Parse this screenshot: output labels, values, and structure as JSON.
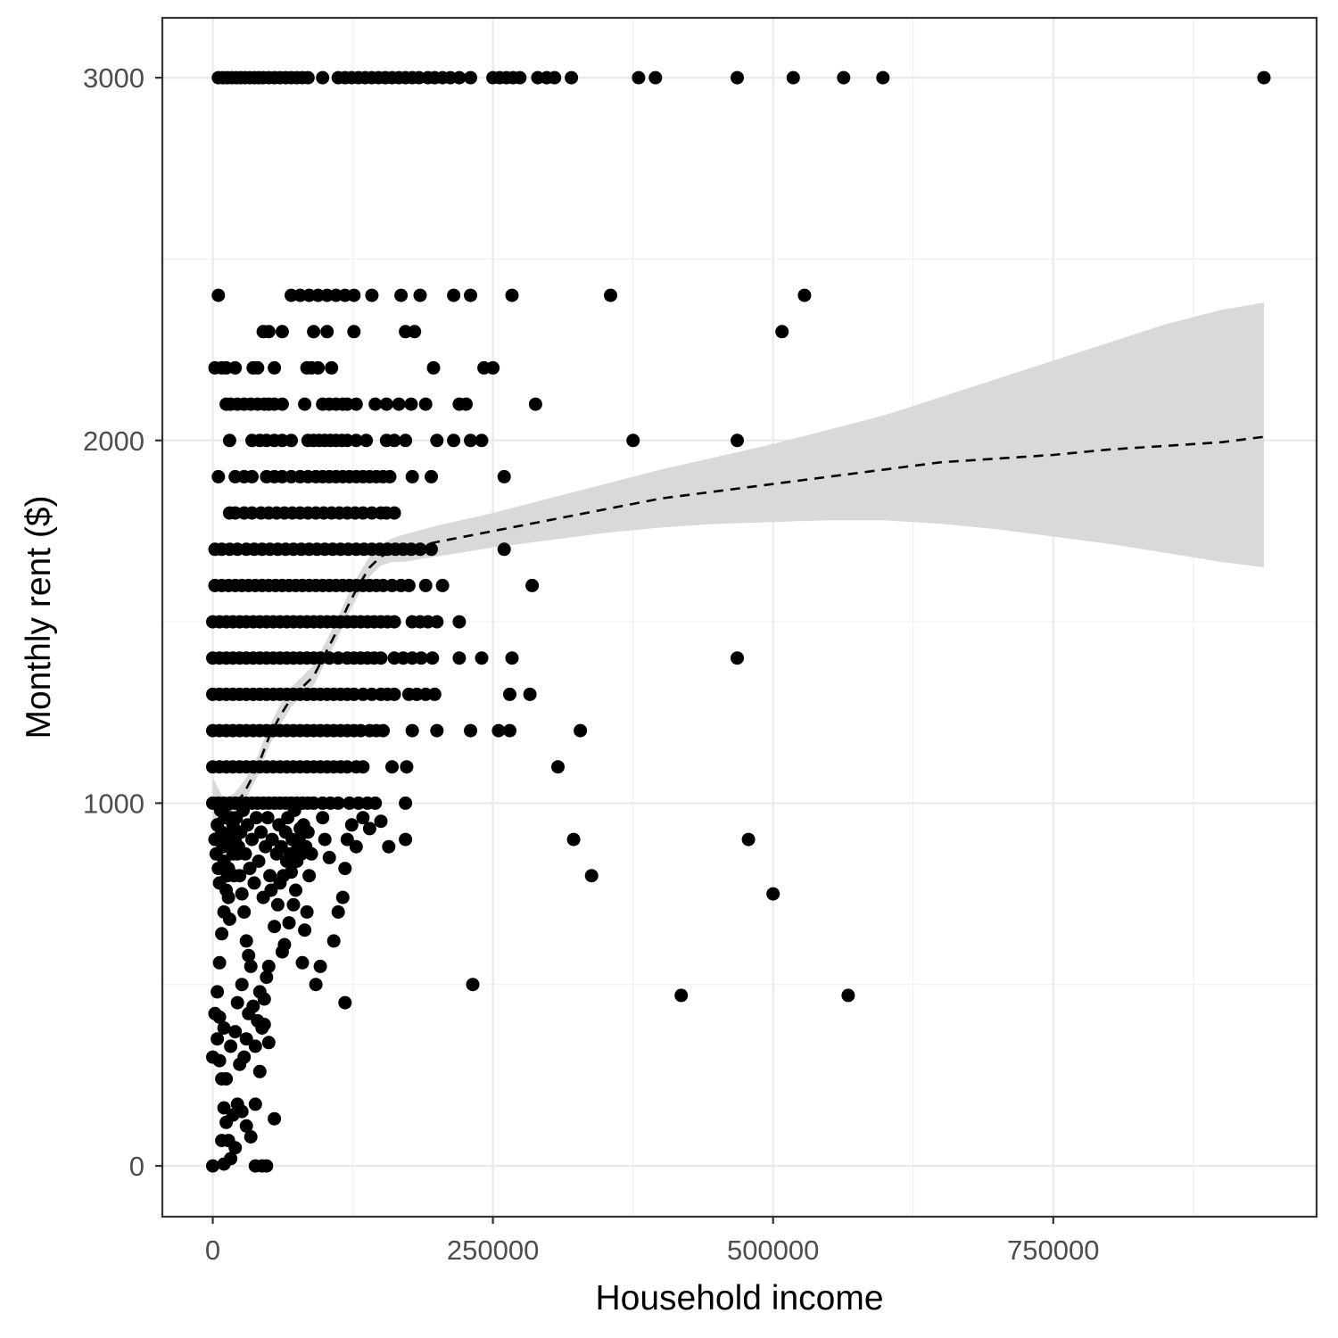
{
  "chart_data": {
    "type": "scatter",
    "title": "",
    "xlabel": "Household income",
    "ylabel": "Monthly rent ($)",
    "xlim": [
      -45000,
      985000
    ],
    "ylim": [
      -140,
      3165
    ],
    "x_ticks": [
      0,
      250000,
      500000,
      750000
    ],
    "x_tick_labels": [
      "0",
      "250000",
      "500000",
      "750000"
    ],
    "y_ticks": [
      0,
      1000,
      2000,
      3000
    ],
    "y_tick_labels": [
      "0",
      "1000",
      "2000",
      "3000"
    ],
    "grid": true,
    "point_color": "#000000",
    "rows": [
      {
        "rent": 3000,
        "incomes": [
          5000,
          9000,
          13000,
          17000,
          21000,
          25000,
          29000,
          33000,
          37000,
          41000,
          45000,
          50000,
          55000,
          60000,
          65000,
          70000,
          75000,
          80000,
          85000,
          98000,
          112000,
          118000,
          124000,
          130000,
          136000,
          142000,
          148000,
          154000,
          160000,
          166000,
          172000,
          178000,
          184000,
          192000,
          198000,
          205000,
          212000,
          220000,
          230000,
          250000,
          256000,
          262000,
          268000,
          274000,
          290000,
          298000,
          305000,
          320000,
          380000,
          395000,
          468000,
          518000,
          563000,
          598000,
          938000
        ]
      },
      {
        "rent": 2400,
        "incomes": [
          5000,
          70000,
          78000,
          86000,
          94000,
          102000,
          110000,
          118000,
          126000,
          142000,
          168000,
          185000,
          215000,
          230000,
          267000,
          355000,
          528000
        ]
      },
      {
        "rent": 2300,
        "incomes": [
          45000,
          50000,
          62000,
          90000,
          102000,
          126000,
          172000,
          180000,
          508000
        ]
      },
      {
        "rent": 2200,
        "incomes": [
          2000,
          8000,
          12000,
          20000,
          36000,
          40000,
          55000,
          84000,
          88000,
          94000,
          106000,
          197000,
          242000,
          250000
        ]
      },
      {
        "rent": 2100,
        "incomes": [
          12000,
          16000,
          22000,
          28000,
          34000,
          40000,
          46000,
          50000,
          55000,
          62000,
          82000,
          98000,
          104000,
          110000,
          116000,
          120000,
          128000,
          145000,
          155000,
          166000,
          177000,
          190000,
          220000,
          226000,
          288000
        ]
      },
      {
        "rent": 2000,
        "incomes": [
          15000,
          35000,
          42000,
          48000,
          55000,
          62000,
          70000,
          85000,
          90000,
          95000,
          100000,
          105000,
          110000,
          115000,
          120000,
          128000,
          137000,
          155000,
          162000,
          172000,
          200000,
          215000,
          230000,
          240000,
          375000,
          468000
        ]
      },
      {
        "rent": 1900,
        "incomes": [
          5000,
          20000,
          28000,
          35000,
          48000,
          55000,
          62000,
          70000,
          78000,
          85000,
          92000,
          98000,
          104000,
          110000,
          116000,
          122000,
          128000,
          134000,
          140000,
          146000,
          152000,
          158000,
          178000,
          195000,
          260000
        ]
      },
      {
        "rent": 1800,
        "incomes": [
          15000,
          20000,
          28000,
          35000,
          43000,
          50000,
          57000,
          64000,
          71000,
          78000,
          85000,
          92000,
          99000,
          106000,
          113000,
          120000,
          127000,
          134000,
          142000,
          150000,
          155000,
          162000
        ]
      },
      {
        "rent": 1700,
        "incomes": [
          2000,
          8000,
          15000,
          22000,
          30000,
          37000,
          44000,
          51000,
          58000,
          65000,
          72000,
          79000,
          86000,
          93000,
          100000,
          107000,
          114000,
          121000,
          128000,
          135000,
          142000,
          149000,
          156000,
          163000,
          170000,
          177000,
          185000,
          195000,
          260000
        ]
      },
      {
        "rent": 1600,
        "incomes": [
          2000,
          8000,
          14000,
          20000,
          26000,
          32000,
          38000,
          44000,
          50000,
          56000,
          62000,
          68000,
          74000,
          80000,
          86000,
          92000,
          98000,
          104000,
          110000,
          116000,
          122000,
          128000,
          134000,
          140000,
          146000,
          152000,
          160000,
          168000,
          175000,
          190000,
          205000,
          285000
        ]
      },
      {
        "rent": 1500,
        "incomes": [
          0,
          6000,
          12000,
          18000,
          24000,
          30000,
          36000,
          42000,
          48000,
          54000,
          60000,
          66000,
          72000,
          78000,
          84000,
          90000,
          96000,
          102000,
          108000,
          114000,
          120000,
          126000,
          132000,
          138000,
          144000,
          150000,
          156000,
          162000,
          178000,
          185000,
          192000,
          200000,
          220000
        ]
      },
      {
        "rent": 1400,
        "incomes": [
          0,
          6000,
          12000,
          18000,
          24000,
          30000,
          36000,
          42000,
          48000,
          54000,
          60000,
          66000,
          72000,
          78000,
          84000,
          90000,
          96000,
          104000,
          112000,
          120000,
          126000,
          132000,
          138000,
          144000,
          150000,
          162000,
          170000,
          178000,
          186000,
          196000,
          220000,
          240000,
          267000,
          468000
        ]
      },
      {
        "rent": 1300,
        "incomes": [
          0,
          6000,
          12000,
          18000,
          24000,
          30000,
          36000,
          42000,
          48000,
          54000,
          60000,
          66000,
          72000,
          78000,
          84000,
          90000,
          96000,
          102000,
          108000,
          114000,
          120000,
          126000,
          134000,
          142000,
          150000,
          156000,
          162000,
          175000,
          182000,
          190000,
          198000,
          265000,
          283000
        ]
      },
      {
        "rent": 1200,
        "incomes": [
          0,
          6000,
          12000,
          18000,
          24000,
          30000,
          36000,
          42000,
          48000,
          54000,
          60000,
          66000,
          72000,
          78000,
          84000,
          90000,
          96000,
          102000,
          108000,
          114000,
          120000,
          126000,
          132000,
          140000,
          146000,
          152000,
          178000,
          200000,
          230000,
          255000,
          265000,
          328000
        ]
      },
      {
        "rent": 1100,
        "incomes": [
          0,
          6000,
          12000,
          18000,
          24000,
          30000,
          36000,
          42000,
          48000,
          54000,
          60000,
          66000,
          72000,
          78000,
          84000,
          90000,
          96000,
          102000,
          108000,
          114000,
          120000,
          128000,
          134000,
          160000,
          173000,
          308000
        ]
      },
      {
        "rent": 1000,
        "incomes": [
          0,
          5000,
          10000,
          15000,
          20000,
          25000,
          30000,
          35000,
          40000,
          45000,
          50000,
          55000,
          60000,
          65000,
          70000,
          75000,
          80000,
          85000,
          90000,
          98000,
          105000,
          112000,
          122000,
          130000,
          138000,
          145000,
          172000
        ]
      }
    ],
    "scatter_points": [
      [
        322000,
        900
      ],
      [
        338000,
        800
      ],
      [
        478000,
        900
      ],
      [
        500000,
        750
      ],
      [
        232000,
        500
      ],
      [
        418000,
        470
      ],
      [
        567000,
        470
      ],
      [
        172000,
        900
      ],
      [
        157000,
        880
      ],
      [
        150000,
        950
      ],
      [
        140000,
        930
      ],
      [
        134000,
        960
      ],
      [
        128000,
        880
      ],
      [
        124000,
        940
      ],
      [
        120000,
        900
      ],
      [
        118000,
        820
      ],
      [
        116000,
        740
      ],
      [
        112000,
        700
      ],
      [
        108000,
        620
      ],
      [
        104000,
        850
      ],
      [
        100000,
        900
      ],
      [
        98000,
        960
      ],
      [
        96000,
        550
      ],
      [
        92000,
        500
      ],
      [
        118000,
        450
      ],
      [
        88000,
        860
      ],
      [
        86000,
        800
      ],
      [
        84000,
        700
      ],
      [
        82000,
        650
      ],
      [
        80000,
        560
      ],
      [
        78000,
        930
      ],
      [
        76000,
        880
      ],
      [
        74000,
        760
      ],
      [
        72000,
        720
      ],
      [
        70000,
        810
      ],
      [
        68000,
        670
      ],
      [
        66000,
        840
      ],
      [
        64000,
        610
      ],
      [
        62000,
        590
      ],
      [
        60000,
        780
      ],
      [
        58000,
        720
      ],
      [
        55000,
        660
      ],
      [
        52000,
        760
      ],
      [
        50000,
        550
      ],
      [
        48000,
        520
      ],
      [
        46000,
        460
      ],
      [
        44000,
        380
      ],
      [
        42000,
        480
      ],
      [
        40000,
        400
      ],
      [
        38000,
        330
      ],
      [
        36000,
        440
      ],
      [
        34000,
        550
      ],
      [
        32000,
        580
      ],
      [
        30000,
        620
      ],
      [
        28000,
        700
      ],
      [
        26000,
        750
      ],
      [
        24000,
        800
      ],
      [
        22000,
        860
      ],
      [
        20000,
        900
      ],
      [
        18000,
        940
      ],
      [
        16000,
        880
      ],
      [
        14000,
        820
      ],
      [
        12000,
        760
      ],
      [
        10000,
        700
      ],
      [
        8000,
        640
      ],
      [
        6000,
        560
      ],
      [
        4000,
        480
      ],
      [
        2000,
        420
      ],
      [
        0,
        300
      ],
      [
        2000,
        900
      ],
      [
        3000,
        860
      ],
      [
        4000,
        940
      ],
      [
        5000,
        820
      ],
      [
        6000,
        780
      ],
      [
        7000,
        980
      ],
      [
        8000,
        920
      ],
      [
        9000,
        880
      ],
      [
        10000,
        840
      ],
      [
        11000,
        960
      ],
      [
        12000,
        900
      ],
      [
        13000,
        800
      ],
      [
        14000,
        740
      ],
      [
        15000,
        680
      ],
      [
        16000,
        960
      ],
      [
        17000,
        920
      ],
      [
        18000,
        860
      ],
      [
        19000,
        800
      ],
      [
        21000,
        960
      ],
      [
        23000,
        880
      ],
      [
        25000,
        920
      ],
      [
        27000,
        980
      ],
      [
        29000,
        860
      ],
      [
        31000,
        940
      ],
      [
        33000,
        820
      ],
      [
        35000,
        900
      ],
      [
        37000,
        780
      ],
      [
        39000,
        960
      ],
      [
        41000,
        840
      ],
      [
        43000,
        920
      ],
      [
        45000,
        740
      ],
      [
        47000,
        880
      ],
      [
        49000,
        960
      ],
      [
        51000,
        800
      ],
      [
        53000,
        900
      ],
      [
        57000,
        860
      ],
      [
        59000,
        940
      ],
      [
        61000,
        880
      ],
      [
        63000,
        800
      ],
      [
        65000,
        920
      ],
      [
        67000,
        960
      ],
      [
        69000,
        860
      ],
      [
        71000,
        900
      ],
      [
        73000,
        980
      ],
      [
        75000,
        840
      ],
      [
        77000,
        900
      ],
      [
        79000,
        860
      ],
      [
        81000,
        940
      ],
      [
        83000,
        880
      ],
      [
        85000,
        920
      ],
      [
        4000,
        350
      ],
      [
        6000,
        290
      ],
      [
        8000,
        240
      ],
      [
        10000,
        160
      ],
      [
        12000,
        120
      ],
      [
        14000,
        70
      ],
      [
        16000,
        20
      ],
      [
        8000,
        70
      ],
      [
        18000,
        140
      ],
      [
        22000,
        170
      ],
      [
        26000,
        150
      ],
      [
        30000,
        110
      ],
      [
        34000,
        80
      ],
      [
        38000,
        170
      ],
      [
        42000,
        260
      ],
      [
        46000,
        390
      ],
      [
        50000,
        340
      ],
      [
        55000,
        130
      ],
      [
        20000,
        50
      ],
      [
        24000,
        280
      ],
      [
        28000,
        300
      ],
      [
        32000,
        420
      ],
      [
        12000,
        240
      ],
      [
        16000,
        330
      ],
      [
        20000,
        370
      ],
      [
        22000,
        450
      ],
      [
        26000,
        500
      ],
      [
        30000,
        350
      ],
      [
        0,
        0
      ],
      [
        10000,
        5
      ],
      [
        38000,
        0
      ],
      [
        44000,
        0
      ],
      [
        48000,
        0
      ],
      [
        6000,
        410
      ],
      [
        10000,
        380
      ]
    ],
    "smooth_line": {
      "style": "dashed",
      "x": [
        0,
        10000,
        20000,
        30000,
        40000,
        50000,
        60000,
        70000,
        80000,
        90000,
        100000,
        110000,
        120000,
        130000,
        140000,
        150000,
        160000,
        170000,
        200000,
        250000,
        300000,
        350000,
        400000,
        450000,
        500000,
        550000,
        600000,
        650000,
        700000,
        750000,
        800000,
        850000,
        900000,
        938000
      ],
      "y": [
        940,
        975,
        990,
        1040,
        1100,
        1180,
        1240,
        1290,
        1320,
        1350,
        1410,
        1470,
        1540,
        1600,
        1650,
        1680,
        1695,
        1700,
        1720,
        1750,
        1780,
        1810,
        1840,
        1860,
        1880,
        1900,
        1920,
        1940,
        1950,
        1960,
        1975,
        1985,
        1995,
        2010
      ]
    },
    "confidence_band": {
      "color": "#d9d9d9",
      "x": [
        0,
        10000,
        20000,
        30000,
        40000,
        50000,
        60000,
        70000,
        80000,
        90000,
        100000,
        110000,
        120000,
        130000,
        140000,
        150000,
        160000,
        170000,
        200000,
        250000,
        300000,
        350000,
        400000,
        450000,
        500000,
        550000,
        600000,
        650000,
        700000,
        750000,
        800000,
        850000,
        900000,
        938000
      ],
      "lower": [
        900,
        945,
        965,
        1015,
        1075,
        1155,
        1215,
        1265,
        1295,
        1325,
        1385,
        1445,
        1515,
        1575,
        1625,
        1655,
        1665,
        1665,
        1680,
        1705,
        1725,
        1745,
        1760,
        1770,
        1775,
        1780,
        1780,
        1770,
        1755,
        1735,
        1715,
        1690,
        1665,
        1650
      ],
      "upper": [
        1070,
        1010,
        1030,
        1070,
        1130,
        1210,
        1270,
        1320,
        1350,
        1380,
        1440,
        1500,
        1570,
        1630,
        1680,
        1715,
        1730,
        1740,
        1765,
        1800,
        1840,
        1880,
        1920,
        1955,
        1990,
        2030,
        2070,
        2120,
        2170,
        2220,
        2270,
        2320,
        2360,
        2380
      ]
    }
  }
}
